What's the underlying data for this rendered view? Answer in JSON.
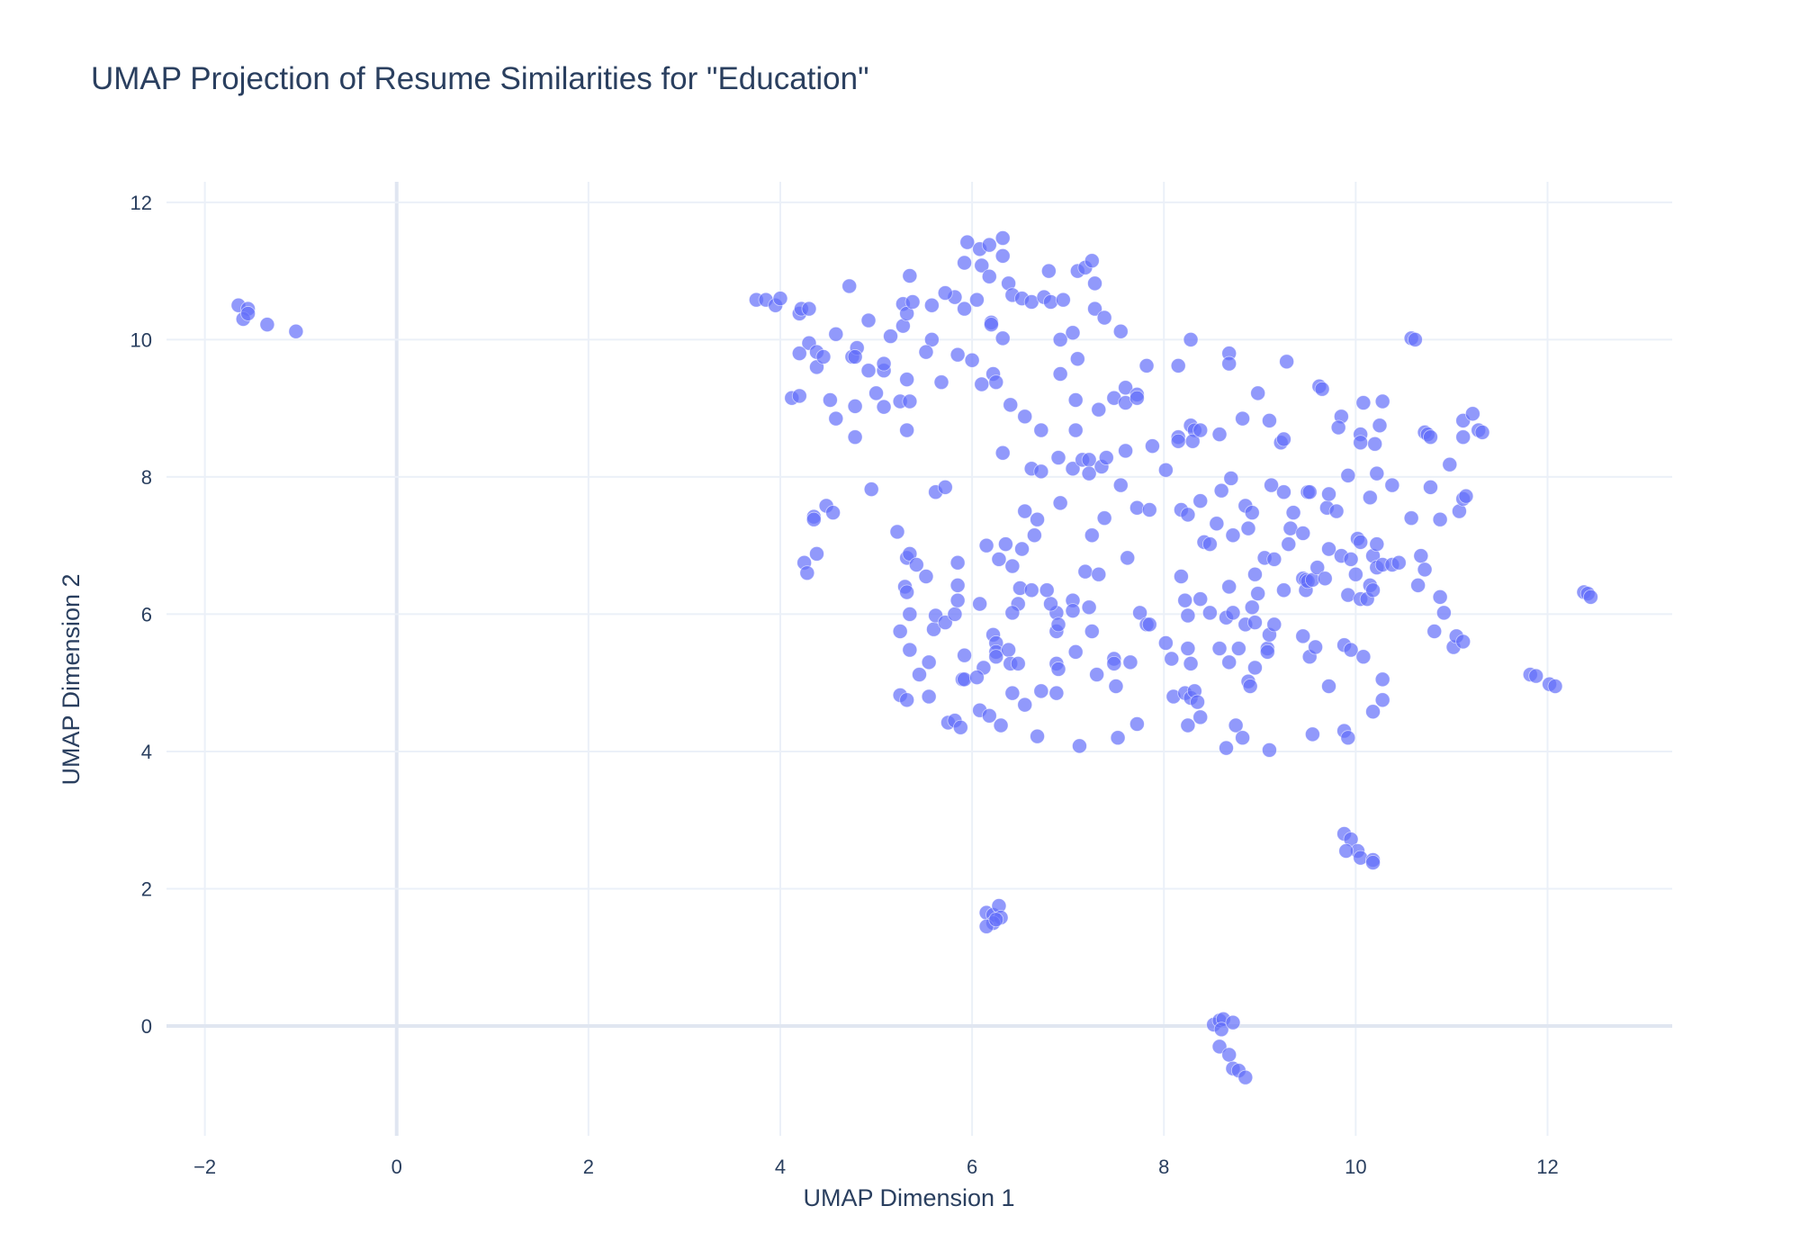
{
  "chart_data": {
    "type": "scatter",
    "title": "UMAP Projection of Resume Similarities for \"Education\"",
    "xlabel": "UMAP Dimension 1",
    "ylabel": "UMAP Dimension 2",
    "xlim": [
      -2.4,
      13.3
    ],
    "ylim": [
      -1.6,
      12.3
    ],
    "xticks": [
      -2,
      0,
      2,
      4,
      6,
      8,
      10,
      12
    ],
    "xtick_labels": [
      "−2",
      "0",
      "2",
      "4",
      "6",
      "8",
      "10",
      "12"
    ],
    "yticks": [
      0,
      2,
      4,
      6,
      8,
      10,
      12
    ],
    "ytick_labels": [
      "0",
      "2",
      "4",
      "6",
      "8",
      "10",
      "12"
    ],
    "grid": true,
    "legend": "none",
    "marker_color": "#636efa",
    "marker_opacity": 0.7,
    "points": [
      [
        -1.65,
        10.5
      ],
      [
        -1.55,
        10.45
      ],
      [
        -1.6,
        10.3
      ],
      [
        -1.55,
        10.38
      ],
      [
        -1.35,
        10.22
      ],
      [
        -1.05,
        10.12
      ],
      [
        3.75,
        10.58
      ],
      [
        3.85,
        10.58
      ],
      [
        3.95,
        10.5
      ],
      [
        4.0,
        10.6
      ],
      [
        4.2,
        10.38
      ],
      [
        4.22,
        10.45
      ],
      [
        4.3,
        10.45
      ],
      [
        4.72,
        10.78
      ],
      [
        4.3,
        9.95
      ],
      [
        4.2,
        9.8
      ],
      [
        4.38,
        9.82
      ],
      [
        4.38,
        9.6
      ],
      [
        4.45,
        9.75
      ],
      [
        4.58,
        10.08
      ],
      [
        4.75,
        9.75
      ],
      [
        4.8,
        9.88
      ],
      [
        4.78,
        9.75
      ],
      [
        4.92,
        9.55
      ],
      [
        4.92,
        10.28
      ],
      [
        5.08,
        9.55
      ],
      [
        5.08,
        9.65
      ],
      [
        5.15,
        10.05
      ],
      [
        5.28,
        10.2
      ],
      [
        5.28,
        10.52
      ],
      [
        5.32,
        10.38
      ],
      [
        5.38,
        10.55
      ],
      [
        5.35,
        10.93
      ],
      [
        5.58,
        10.5
      ],
      [
        5.58,
        10.0
      ],
      [
        5.52,
        9.82
      ],
      [
        5.68,
        9.38
      ],
      [
        5.32,
        9.42
      ],
      [
        4.12,
        9.15
      ],
      [
        4.2,
        9.18
      ],
      [
        4.52,
        9.12
      ],
      [
        4.58,
        8.85
      ],
      [
        4.78,
        9.03
      ],
      [
        4.78,
        8.58
      ],
      [
        5.0,
        9.22
      ],
      [
        5.08,
        9.02
      ],
      [
        5.25,
        9.1
      ],
      [
        5.35,
        9.1
      ],
      [
        5.32,
        8.68
      ],
      [
        4.95,
        7.82
      ],
      [
        5.62,
        7.78
      ],
      [
        5.72,
        7.85
      ],
      [
        4.35,
        7.42
      ],
      [
        4.35,
        7.38
      ],
      [
        4.48,
        7.58
      ],
      [
        4.55,
        7.48
      ],
      [
        4.38,
        6.88
      ],
      [
        4.25,
        6.75
      ],
      [
        4.28,
        6.6
      ],
      [
        5.22,
        7.2
      ],
      [
        5.32,
        6.82
      ],
      [
        5.35,
        6.88
      ],
      [
        5.42,
        6.72
      ],
      [
        5.52,
        6.55
      ],
      [
        5.3,
        6.4
      ],
      [
        5.32,
        6.32
      ],
      [
        5.35,
        6.0
      ],
      [
        5.25,
        5.75
      ],
      [
        5.35,
        5.48
      ],
      [
        5.45,
        5.12
      ],
      [
        5.55,
        5.3
      ],
      [
        5.6,
        5.78
      ],
      [
        5.62,
        5.98
      ],
      [
        5.72,
        5.88
      ],
      [
        5.82,
        6.0
      ],
      [
        5.25,
        4.82
      ],
      [
        5.32,
        4.75
      ],
      [
        5.55,
        4.8
      ],
      [
        5.75,
        4.42
      ],
      [
        5.82,
        4.45
      ],
      [
        5.88,
        4.35
      ],
      [
        5.9,
        5.05
      ],
      [
        5.92,
        5.05
      ],
      [
        5.92,
        5.4
      ],
      [
        5.85,
        6.2
      ],
      [
        5.85,
        6.42
      ],
      [
        5.85,
        6.75
      ],
      [
        6.08,
        6.15
      ],
      [
        6.15,
        7.0
      ],
      [
        6.28,
        6.8
      ],
      [
        6.35,
        7.02
      ],
      [
        6.42,
        6.7
      ],
      [
        6.5,
        6.38
      ],
      [
        6.52,
        6.95
      ],
      [
        6.48,
        6.15
      ],
      [
        6.42,
        6.02
      ],
      [
        6.22,
        5.7
      ],
      [
        6.25,
        5.58
      ],
      [
        6.25,
        5.45
      ],
      [
        6.25,
        5.38
      ],
      [
        6.38,
        5.48
      ],
      [
        6.4,
        5.28
      ],
      [
        6.48,
        5.28
      ],
      [
        6.12,
        5.22
      ],
      [
        6.05,
        5.08
      ],
      [
        6.42,
        4.85
      ],
      [
        6.55,
        4.68
      ],
      [
        6.08,
        4.6
      ],
      [
        6.18,
        4.52
      ],
      [
        6.3,
        4.38
      ],
      [
        6.68,
        4.22
      ],
      [
        5.95,
        11.42
      ],
      [
        6.08,
        11.32
      ],
      [
        6.18,
        11.38
      ],
      [
        6.32,
        11.48
      ],
      [
        6.32,
        11.22
      ],
      [
        6.1,
        11.08
      ],
      [
        5.92,
        11.12
      ],
      [
        6.18,
        10.92
      ],
      [
        6.38,
        10.82
      ],
      [
        6.42,
        10.65
      ],
      [
        6.52,
        10.6
      ],
      [
        6.05,
        10.58
      ],
      [
        5.92,
        10.45
      ],
      [
        5.82,
        10.62
      ],
      [
        5.72,
        10.68
      ],
      [
        6.2,
        10.25
      ],
      [
        6.2,
        10.22
      ],
      [
        6.32,
        10.02
      ],
      [
        5.85,
        9.78
      ],
      [
        6.0,
        9.7
      ],
      [
        6.22,
        9.5
      ],
      [
        6.1,
        9.35
      ],
      [
        6.25,
        9.38
      ],
      [
        6.4,
        9.05
      ],
      [
        6.55,
        8.88
      ],
      [
        6.32,
        8.35
      ],
      [
        6.72,
        8.68
      ],
      [
        6.62,
        8.12
      ],
      [
        6.72,
        8.08
      ],
      [
        6.62,
        10.55
      ],
      [
        6.75,
        10.62
      ],
      [
        6.82,
        10.55
      ],
      [
        6.8,
        11.0
      ],
      [
        6.95,
        10.58
      ],
      [
        7.05,
        10.1
      ],
      [
        6.92,
        10.0
      ],
      [
        6.92,
        9.5
      ],
      [
        7.1,
        9.72
      ],
      [
        7.08,
        9.12
      ],
      [
        7.08,
        8.68
      ],
      [
        7.32,
        8.98
      ],
      [
        7.1,
        11.0
      ],
      [
        7.18,
        11.05
      ],
      [
        7.25,
        11.15
      ],
      [
        7.28,
        10.82
      ],
      [
        7.28,
        10.45
      ],
      [
        7.38,
        10.32
      ],
      [
        7.55,
        10.12
      ],
      [
        6.9,
        8.28
      ],
      [
        7.05,
        8.12
      ],
      [
        7.15,
        8.25
      ],
      [
        7.22,
        8.25
      ],
      [
        7.22,
        8.05
      ],
      [
        7.35,
        8.15
      ],
      [
        7.4,
        8.28
      ],
      [
        7.48,
        9.15
      ],
      [
        7.6,
        9.3
      ],
      [
        7.6,
        9.08
      ],
      [
        7.72,
        9.2
      ],
      [
        7.72,
        9.15
      ],
      [
        7.6,
        8.38
      ],
      [
        7.82,
        9.62
      ],
      [
        7.88,
        8.45
      ],
      [
        8.02,
        8.1
      ],
      [
        8.28,
        10.0
      ],
      [
        8.68,
        9.8
      ],
      [
        8.68,
        9.65
      ],
      [
        8.15,
        9.62
      ],
      [
        8.15,
        8.58
      ],
      [
        8.15,
        8.52
      ],
      [
        8.28,
        8.75
      ],
      [
        8.32,
        8.68
      ],
      [
        8.3,
        8.52
      ],
      [
        8.38,
        8.68
      ],
      [
        8.58,
        8.62
      ],
      [
        8.82,
        8.85
      ],
      [
        8.98,
        9.22
      ],
      [
        9.1,
        8.82
      ],
      [
        9.22,
        8.5
      ],
      [
        9.25,
        8.55
      ],
      [
        9.28,
        9.68
      ],
      [
        9.62,
        9.32
      ],
      [
        9.65,
        9.28
      ],
      [
        9.85,
        8.88
      ],
      [
        9.82,
        8.72
      ],
      [
        10.08,
        9.08
      ],
      [
        10.05,
        8.62
      ],
      [
        10.05,
        8.5
      ],
      [
        10.2,
        8.48
      ],
      [
        10.25,
        8.75
      ],
      [
        10.28,
        9.1
      ],
      [
        10.58,
        10.02
      ],
      [
        10.62,
        10.0
      ],
      [
        10.72,
        8.65
      ],
      [
        10.75,
        8.62
      ],
      [
        10.78,
        8.58
      ],
      [
        11.12,
        8.58
      ],
      [
        11.12,
        8.82
      ],
      [
        11.22,
        8.92
      ],
      [
        11.28,
        8.68
      ],
      [
        11.32,
        8.65
      ],
      [
        6.55,
        7.5
      ],
      [
        6.65,
        7.15
      ],
      [
        6.68,
        7.38
      ],
      [
        6.92,
        7.62
      ],
      [
        7.25,
        7.15
      ],
      [
        7.38,
        7.4
      ],
      [
        7.55,
        7.88
      ],
      [
        7.72,
        7.55
      ],
      [
        7.85,
        7.52
      ],
      [
        8.18,
        7.52
      ],
      [
        8.25,
        7.45
      ],
      [
        8.38,
        7.65
      ],
      [
        8.55,
        7.32
      ],
      [
        8.6,
        7.8
      ],
      [
        8.7,
        7.98
      ],
      [
        8.72,
        7.15
      ],
      [
        8.85,
        7.58
      ],
      [
        8.92,
        7.48
      ],
      [
        9.12,
        7.88
      ],
      [
        9.25,
        7.78
      ],
      [
        9.32,
        7.25
      ],
      [
        9.35,
        7.48
      ],
      [
        9.45,
        7.18
      ],
      [
        9.5,
        7.78
      ],
      [
        9.52,
        7.78
      ],
      [
        9.7,
        7.55
      ],
      [
        9.72,
        7.75
      ],
      [
        9.8,
        7.5
      ],
      [
        9.92,
        8.02
      ],
      [
        10.15,
        7.7
      ],
      [
        10.22,
        8.05
      ],
      [
        10.38,
        7.88
      ],
      [
        10.58,
        7.4
      ],
      [
        10.78,
        7.85
      ],
      [
        10.88,
        7.38
      ],
      [
        10.98,
        8.18
      ],
      [
        11.08,
        7.5
      ],
      [
        11.12,
        7.68
      ],
      [
        11.15,
        7.72
      ],
      [
        6.88,
        6.02
      ],
      [
        6.82,
        6.15
      ],
      [
        6.78,
        6.35
      ],
      [
        6.62,
        6.35
      ],
      [
        6.88,
        5.75
      ],
      [
        6.9,
        5.85
      ],
      [
        6.88,
        5.28
      ],
      [
        6.9,
        5.2
      ],
      [
        7.05,
        6.2
      ],
      [
        7.05,
        6.05
      ],
      [
        7.08,
        5.45
      ],
      [
        7.18,
        6.62
      ],
      [
        7.22,
        6.1
      ],
      [
        7.25,
        5.75
      ],
      [
        7.32,
        6.58
      ],
      [
        7.3,
        5.12
      ],
      [
        7.48,
        5.35
      ],
      [
        7.48,
        5.28
      ],
      [
        7.5,
        4.95
      ],
      [
        7.62,
        6.82
      ],
      [
        7.65,
        5.3
      ],
      [
        7.75,
        6.02
      ],
      [
        7.82,
        5.85
      ],
      [
        7.85,
        5.85
      ],
      [
        7.72,
        4.4
      ],
      [
        7.52,
        4.2
      ],
      [
        7.12,
        4.08
      ],
      [
        6.88,
        4.85
      ],
      [
        6.72,
        4.88
      ],
      [
        8.02,
        5.58
      ],
      [
        8.08,
        5.35
      ],
      [
        8.1,
        4.8
      ],
      [
        8.18,
        6.55
      ],
      [
        8.22,
        6.2
      ],
      [
        8.25,
        5.98
      ],
      [
        8.25,
        5.5
      ],
      [
        8.28,
        5.28
      ],
      [
        8.22,
        4.85
      ],
      [
        8.28,
        4.78
      ],
      [
        8.32,
        4.88
      ],
      [
        8.35,
        4.72
      ],
      [
        8.38,
        4.5
      ],
      [
        8.25,
        4.38
      ],
      [
        8.38,
        6.22
      ],
      [
        8.42,
        7.05
      ],
      [
        8.48,
        7.02
      ],
      [
        8.48,
        6.02
      ],
      [
        8.58,
        5.5
      ],
      [
        8.65,
        5.95
      ],
      [
        8.72,
        6.02
      ],
      [
        8.68,
        5.3
      ],
      [
        8.68,
        6.4
      ],
      [
        8.78,
        5.5
      ],
      [
        8.85,
        5.85
      ],
      [
        8.88,
        5.02
      ],
      [
        8.9,
        4.95
      ],
      [
        8.95,
        5.22
      ],
      [
        8.92,
        6.1
      ],
      [
        8.95,
        6.58
      ],
      [
        8.98,
        6.3
      ],
      [
        8.95,
        5.88
      ],
      [
        9.05,
        6.82
      ],
      [
        9.08,
        5.5
      ],
      [
        9.08,
        5.45
      ],
      [
        9.1,
        5.7
      ],
      [
        9.15,
        5.85
      ],
      [
        9.15,
        6.8
      ],
      [
        9.25,
        6.35
      ],
      [
        9.3,
        7.02
      ],
      [
        8.88,
        7.25
      ],
      [
        8.75,
        4.38
      ],
      [
        8.82,
        4.2
      ],
      [
        8.65,
        4.05
      ],
      [
        9.1,
        4.02
      ],
      [
        9.45,
        6.52
      ],
      [
        9.48,
        6.5
      ],
      [
        9.48,
        6.35
      ],
      [
        9.5,
        6.48
      ],
      [
        9.55,
        6.5
      ],
      [
        9.6,
        6.68
      ],
      [
        9.68,
        6.52
      ],
      [
        9.72,
        6.95
      ],
      [
        9.85,
        6.85
      ],
      [
        9.92,
        6.28
      ],
      [
        9.95,
        6.8
      ],
      [
        10.0,
        6.58
      ],
      [
        10.02,
        7.1
      ],
      [
        10.05,
        7.05
      ],
      [
        10.05,
        6.22
      ],
      [
        10.12,
        6.22
      ],
      [
        10.15,
        6.42
      ],
      [
        10.18,
        6.35
      ],
      [
        10.18,
        6.85
      ],
      [
        10.22,
        6.68
      ],
      [
        10.22,
        7.02
      ],
      [
        10.28,
        6.72
      ],
      [
        10.38,
        6.72
      ],
      [
        10.45,
        6.75
      ],
      [
        10.65,
        6.42
      ],
      [
        10.68,
        6.85
      ],
      [
        10.72,
        6.65
      ],
      [
        10.88,
        6.25
      ],
      [
        10.92,
        6.02
      ],
      [
        9.45,
        5.68
      ],
      [
        9.52,
        5.38
      ],
      [
        9.58,
        5.52
      ],
      [
        9.55,
        4.25
      ],
      [
        9.72,
        4.95
      ],
      [
        9.88,
        5.55
      ],
      [
        9.95,
        5.48
      ],
      [
        10.08,
        5.38
      ],
      [
        10.28,
        5.05
      ],
      [
        10.28,
        4.75
      ],
      [
        10.18,
        4.58
      ],
      [
        9.88,
        4.3
      ],
      [
        9.92,
        4.2
      ],
      [
        10.82,
        5.75
      ],
      [
        11.02,
        5.52
      ],
      [
        11.05,
        5.68
      ],
      [
        11.12,
        5.6
      ],
      [
        11.82,
        5.12
      ],
      [
        11.88,
        5.1
      ],
      [
        12.02,
        4.98
      ],
      [
        12.08,
        4.95
      ],
      [
        12.38,
        6.32
      ],
      [
        12.42,
        6.3
      ],
      [
        12.45,
        6.25
      ],
      [
        9.88,
        2.8
      ],
      [
        9.95,
        2.72
      ],
      [
        10.02,
        2.55
      ],
      [
        9.9,
        2.55
      ],
      [
        10.05,
        2.45
      ],
      [
        10.18,
        2.42
      ],
      [
        10.18,
        2.38
      ],
      [
        6.15,
        1.65
      ],
      [
        6.22,
        1.62
      ],
      [
        6.28,
        1.75
      ],
      [
        6.3,
        1.58
      ],
      [
        6.22,
        1.5
      ],
      [
        6.15,
        1.45
      ],
      [
        6.25,
        1.55
      ],
      [
        8.52,
        0.02
      ],
      [
        8.58,
        0.08
      ],
      [
        8.62,
        0.1
      ],
      [
        8.6,
        -0.05
      ],
      [
        8.72,
        0.05
      ],
      [
        8.58,
        -0.3
      ],
      [
        8.68,
        -0.42
      ],
      [
        8.72,
        -0.62
      ],
      [
        8.78,
        -0.65
      ],
      [
        8.85,
        -0.75
      ]
    ]
  }
}
